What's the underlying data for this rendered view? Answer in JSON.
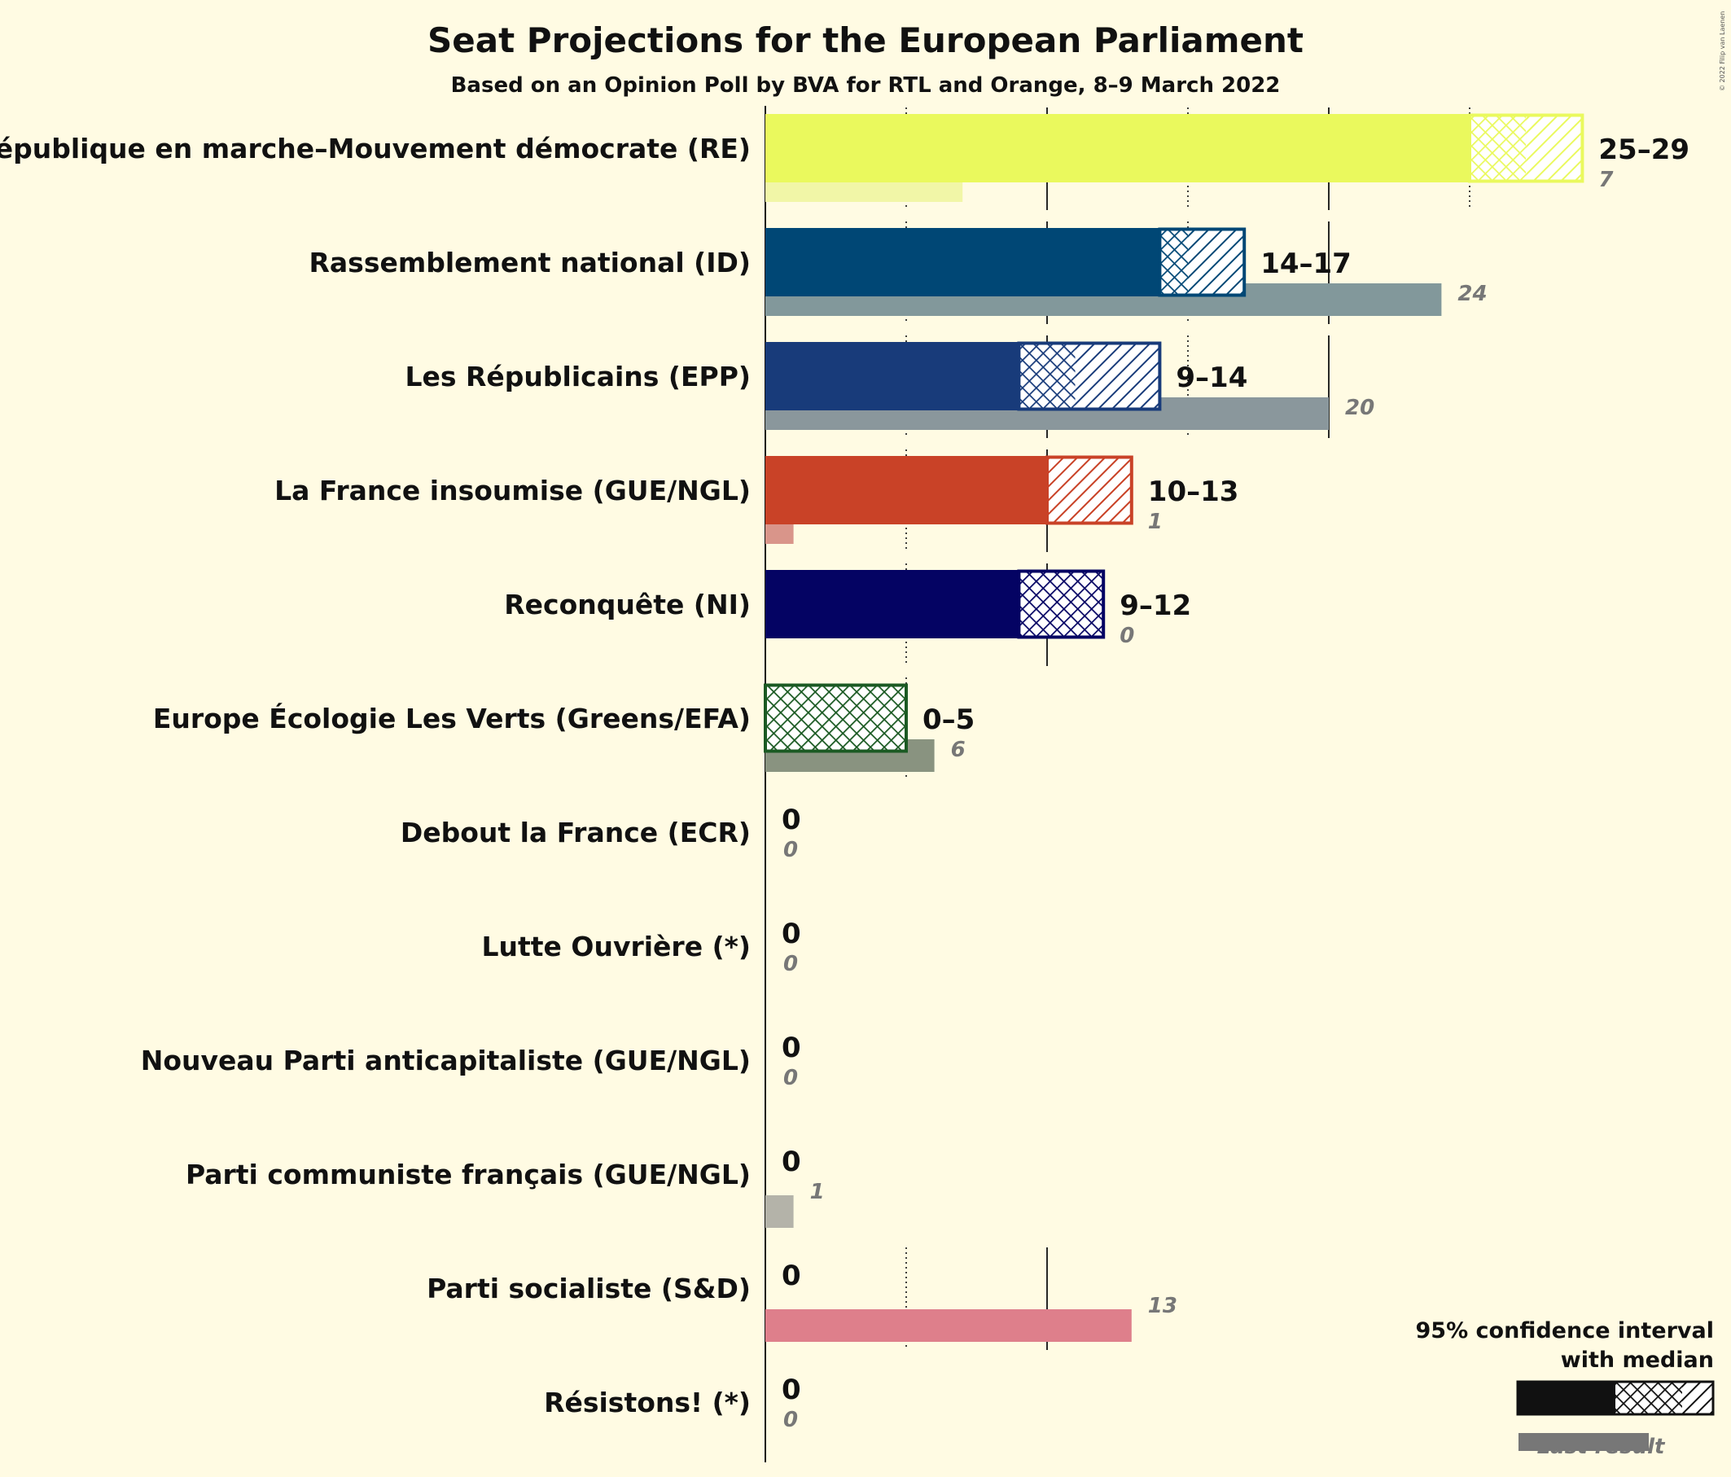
{
  "chart_data": {
    "type": "bar",
    "title": "Seat Projections for the European Parliament",
    "subtitle": "Based on an Opinion Poll by BVA for RTL and Orange, 8–9 March 2022",
    "copyright": "© 2022 Filip van Laenen",
    "xlim": [
      0,
      30
    ],
    "gridlines": [
      5,
      10,
      15,
      20,
      25
    ],
    "legend": {
      "line1": "95% confidence interval",
      "line2": "with median",
      "last_result": "Last result",
      "position": "bottom-right"
    },
    "parties": [
      {
        "name": "La République en marche–Mouvement démocrate (RE)",
        "low": 25,
        "median": 27,
        "high": 29,
        "last": 7,
        "range_label": "25–29",
        "last_label": "7",
        "color": "#eaf95d",
        "last_color": "#f1f6a7",
        "frame_color": "#eaf95d"
      },
      {
        "name": "Rassemblement national (ID)",
        "low": 14,
        "median": 15,
        "high": 17,
        "last": 24,
        "range_label": "14–17",
        "last_label": "24",
        "color": "#004775",
        "last_color": "#82989b",
        "frame_color": "#004775"
      },
      {
        "name": "Les Républicains (EPP)",
        "low": 9,
        "median": 11,
        "high": 14,
        "last": 20,
        "range_label": "9–14",
        "last_label": "20",
        "color": "#183b7a",
        "last_color": "#8a979c",
        "frame_color": "#183b7a"
      },
      {
        "name": "La France insoumise (GUE/NGL)",
        "low": 10,
        "median": 10,
        "high": 13,
        "last": 1,
        "range_label": "10–13",
        "last_label": "1",
        "color": "#c94227",
        "last_color": "#d9958a",
        "frame_color": "#c94227"
      },
      {
        "name": "Reconquête (NI)",
        "low": 9,
        "median": 12,
        "high": 12,
        "last": 0,
        "range_label": "9–12",
        "last_label": "0",
        "color": "#040363",
        "last_color": "#888888",
        "frame_color": "#040363"
      },
      {
        "name": "Europe Écologie Les Verts (Greens/EFA)",
        "low": 0,
        "median": 5,
        "high": 5,
        "last": 6,
        "range_label": "0–5",
        "last_label": "6",
        "color": "#1b5a23",
        "last_color": "#899380",
        "frame_color": "#1b5a23"
      },
      {
        "name": "Debout la France (ECR)",
        "low": 0,
        "median": 0,
        "high": 0,
        "last": 0,
        "range_label": "0",
        "last_label": "0",
        "color": "#888888",
        "last_color": "#aaaaaa",
        "frame_color": "#888888"
      },
      {
        "name": "Lutte Ouvrière (*)",
        "low": 0,
        "median": 0,
        "high": 0,
        "last": 0,
        "range_label": "0",
        "last_label": "0",
        "color": "#888888",
        "last_color": "#aaaaaa",
        "frame_color": "#888888"
      },
      {
        "name": "Nouveau Parti anticapitaliste (GUE/NGL)",
        "low": 0,
        "median": 0,
        "high": 0,
        "last": 0,
        "range_label": "0",
        "last_label": "0",
        "color": "#888888",
        "last_color": "#aaaaaa",
        "frame_color": "#888888"
      },
      {
        "name": "Parti communiste français (GUE/NGL)",
        "low": 0,
        "median": 0,
        "high": 0,
        "last": 1,
        "range_label": "0",
        "last_label": "1",
        "color": "#888888",
        "last_color": "#b4b3a9",
        "frame_color": "#888888"
      },
      {
        "name": "Parti socialiste (S&D)",
        "low": 0,
        "median": 0,
        "high": 0,
        "last": 13,
        "range_label": "0",
        "last_label": "13",
        "color": "#de7f8b",
        "last_color": "#de7f8b",
        "frame_color": "#de7f8b"
      },
      {
        "name": "Résistons! (*)",
        "low": 0,
        "median": 0,
        "high": 0,
        "last": 0,
        "range_label": "0",
        "last_label": "0",
        "color": "#888888",
        "last_color": "#aaaaaa",
        "frame_color": "#888888"
      }
    ]
  }
}
